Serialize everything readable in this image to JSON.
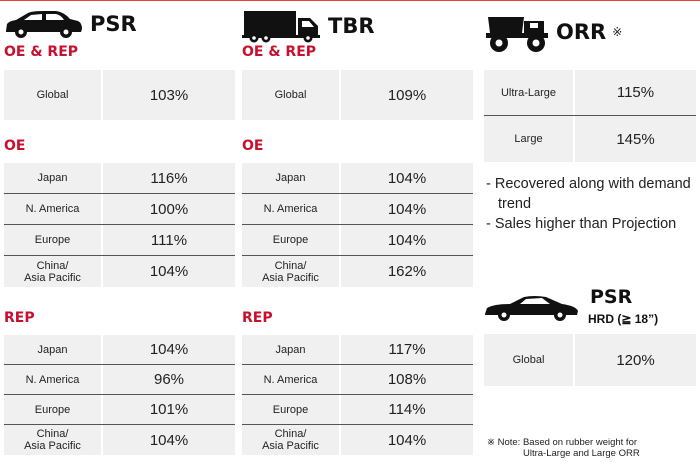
{
  "colors": {
    "accent_red": "#c8102e",
    "cell_bg": "#f0f0f0",
    "divider": "#555555"
  },
  "psr": {
    "icon": "car-icon",
    "title": "PSR",
    "oe_rep": {
      "heading": "OE & REP",
      "rows": [
        {
          "label": "Global",
          "value": "103%"
        }
      ]
    },
    "oe": {
      "heading": "OE",
      "rows": [
        {
          "label": "Japan",
          "value": "116%"
        },
        {
          "label": "N. America",
          "value": "100%"
        },
        {
          "label": "Europe",
          "value": "111%"
        },
        {
          "label": "China/\nAsia Pacific",
          "value": "104%"
        }
      ]
    },
    "rep": {
      "heading": "REP",
      "rows": [
        {
          "label": "Japan",
          "value": "104%"
        },
        {
          "label": "N. America",
          "value": "96%"
        },
        {
          "label": "Europe",
          "value": "101%"
        },
        {
          "label": "China/\nAsia Pacific",
          "value": "104%"
        }
      ]
    }
  },
  "tbr": {
    "icon": "truck-icon",
    "title": "TBR",
    "oe_rep": {
      "heading": "OE & REP",
      "rows": [
        {
          "label": "Global",
          "value": "109%"
        }
      ]
    },
    "oe": {
      "heading": "OE",
      "rows": [
        {
          "label": "Japan",
          "value": "104%"
        },
        {
          "label": "N. America",
          "value": "104%"
        },
        {
          "label": "Europe",
          "value": "104%"
        },
        {
          "label": "China/\nAsia Pacific",
          "value": "162%"
        }
      ]
    },
    "rep": {
      "heading": "REP",
      "rows": [
        {
          "label": "Japan",
          "value": "117%"
        },
        {
          "label": "N. America",
          "value": "108%"
        },
        {
          "label": "Europe",
          "value": "114%"
        },
        {
          "label": "China/\nAsia Pacific",
          "value": "104%"
        }
      ]
    }
  },
  "orr": {
    "icon": "dump-truck-icon",
    "title": "ORR",
    "mark": "※",
    "rows": [
      {
        "label": "Ultra-Large",
        "value": "115%"
      },
      {
        "label": "Large",
        "value": "145%"
      }
    ],
    "bullets": [
      "- Recovered along with demand trend",
      "- Sales higher than Projection"
    ]
  },
  "psr_hrd": {
    "icon": "sports-car-icon",
    "title": "PSR",
    "subtitle": "HRD (≧ 18”)",
    "rows": [
      {
        "label": "Global",
        "value": "120%"
      }
    ]
  },
  "note": {
    "line1": "※ Note: Based on rubber weight for",
    "line2": "Ultra-Large and Large ORR"
  }
}
